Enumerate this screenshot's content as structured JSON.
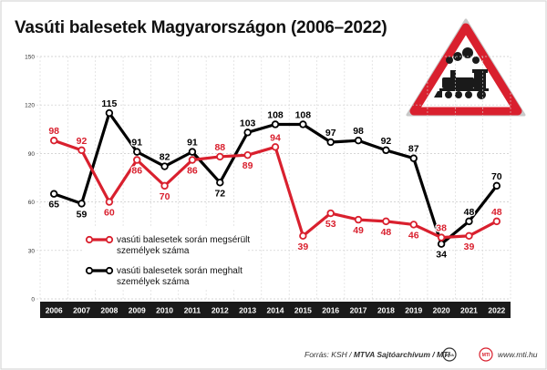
{
  "title": "Vasúti balesetek Magyarországon (2006–2022)",
  "footer": {
    "source_prefix": "Forrás: KSH / ",
    "source_bold": "MTVA Sajtóarchívum / MTI",
    "site": "www.mti.hu",
    "logo1_text": "MTVA",
    "logo2_text": "MTI"
  },
  "colors": {
    "injured": "#d9202e",
    "killed": "#000000",
    "sign_red": "#d9202e",
    "axis_bar": "#1a1a1a"
  },
  "icons": [
    "railway-crossing-warning-sign-icon",
    "steam-locomotive-icon"
  ],
  "chart_data": {
    "type": "line",
    "x": [
      2006,
      2007,
      2008,
      2009,
      2010,
      2011,
      2012,
      2013,
      2014,
      2015,
      2016,
      2017,
      2018,
      2019,
      2020,
      2021,
      2022
    ],
    "ylim": [
      0,
      150
    ],
    "yticks": [
      0,
      30,
      60,
      90,
      120,
      150
    ],
    "grid": true,
    "legend_position": "bottom-left",
    "series": [
      {
        "name": "vasúti balesetek során megsérült személyek száma",
        "name_lines": [
          "vasúti balesetek során megsérült",
          "személyek száma"
        ],
        "color": "#d9202e",
        "values": [
          98,
          92,
          60,
          86,
          70,
          86,
          88,
          89,
          94,
          39,
          53,
          49,
          48,
          46,
          38,
          39,
          48
        ],
        "label_pos": [
          "above",
          "above",
          "below",
          "below",
          "below",
          "below",
          "above",
          "below",
          "above",
          "below",
          "below",
          "below",
          "below",
          "below",
          "above",
          "below",
          "above"
        ]
      },
      {
        "name": "vasúti balesetek során meghalt személyek száma",
        "name_lines": [
          "vasúti balesetek során meghalt",
          "személyek száma"
        ],
        "color": "#000000",
        "values": [
          65,
          59,
          115,
          91,
          82,
          91,
          72,
          103,
          108,
          108,
          97,
          98,
          92,
          87,
          34,
          48,
          70
        ],
        "label_pos": [
          "below",
          "below",
          "above",
          "above",
          "above",
          "above",
          "below",
          "above",
          "above",
          "above",
          "above",
          "above",
          "above",
          "above",
          "below",
          "above",
          "above"
        ]
      }
    ]
  }
}
